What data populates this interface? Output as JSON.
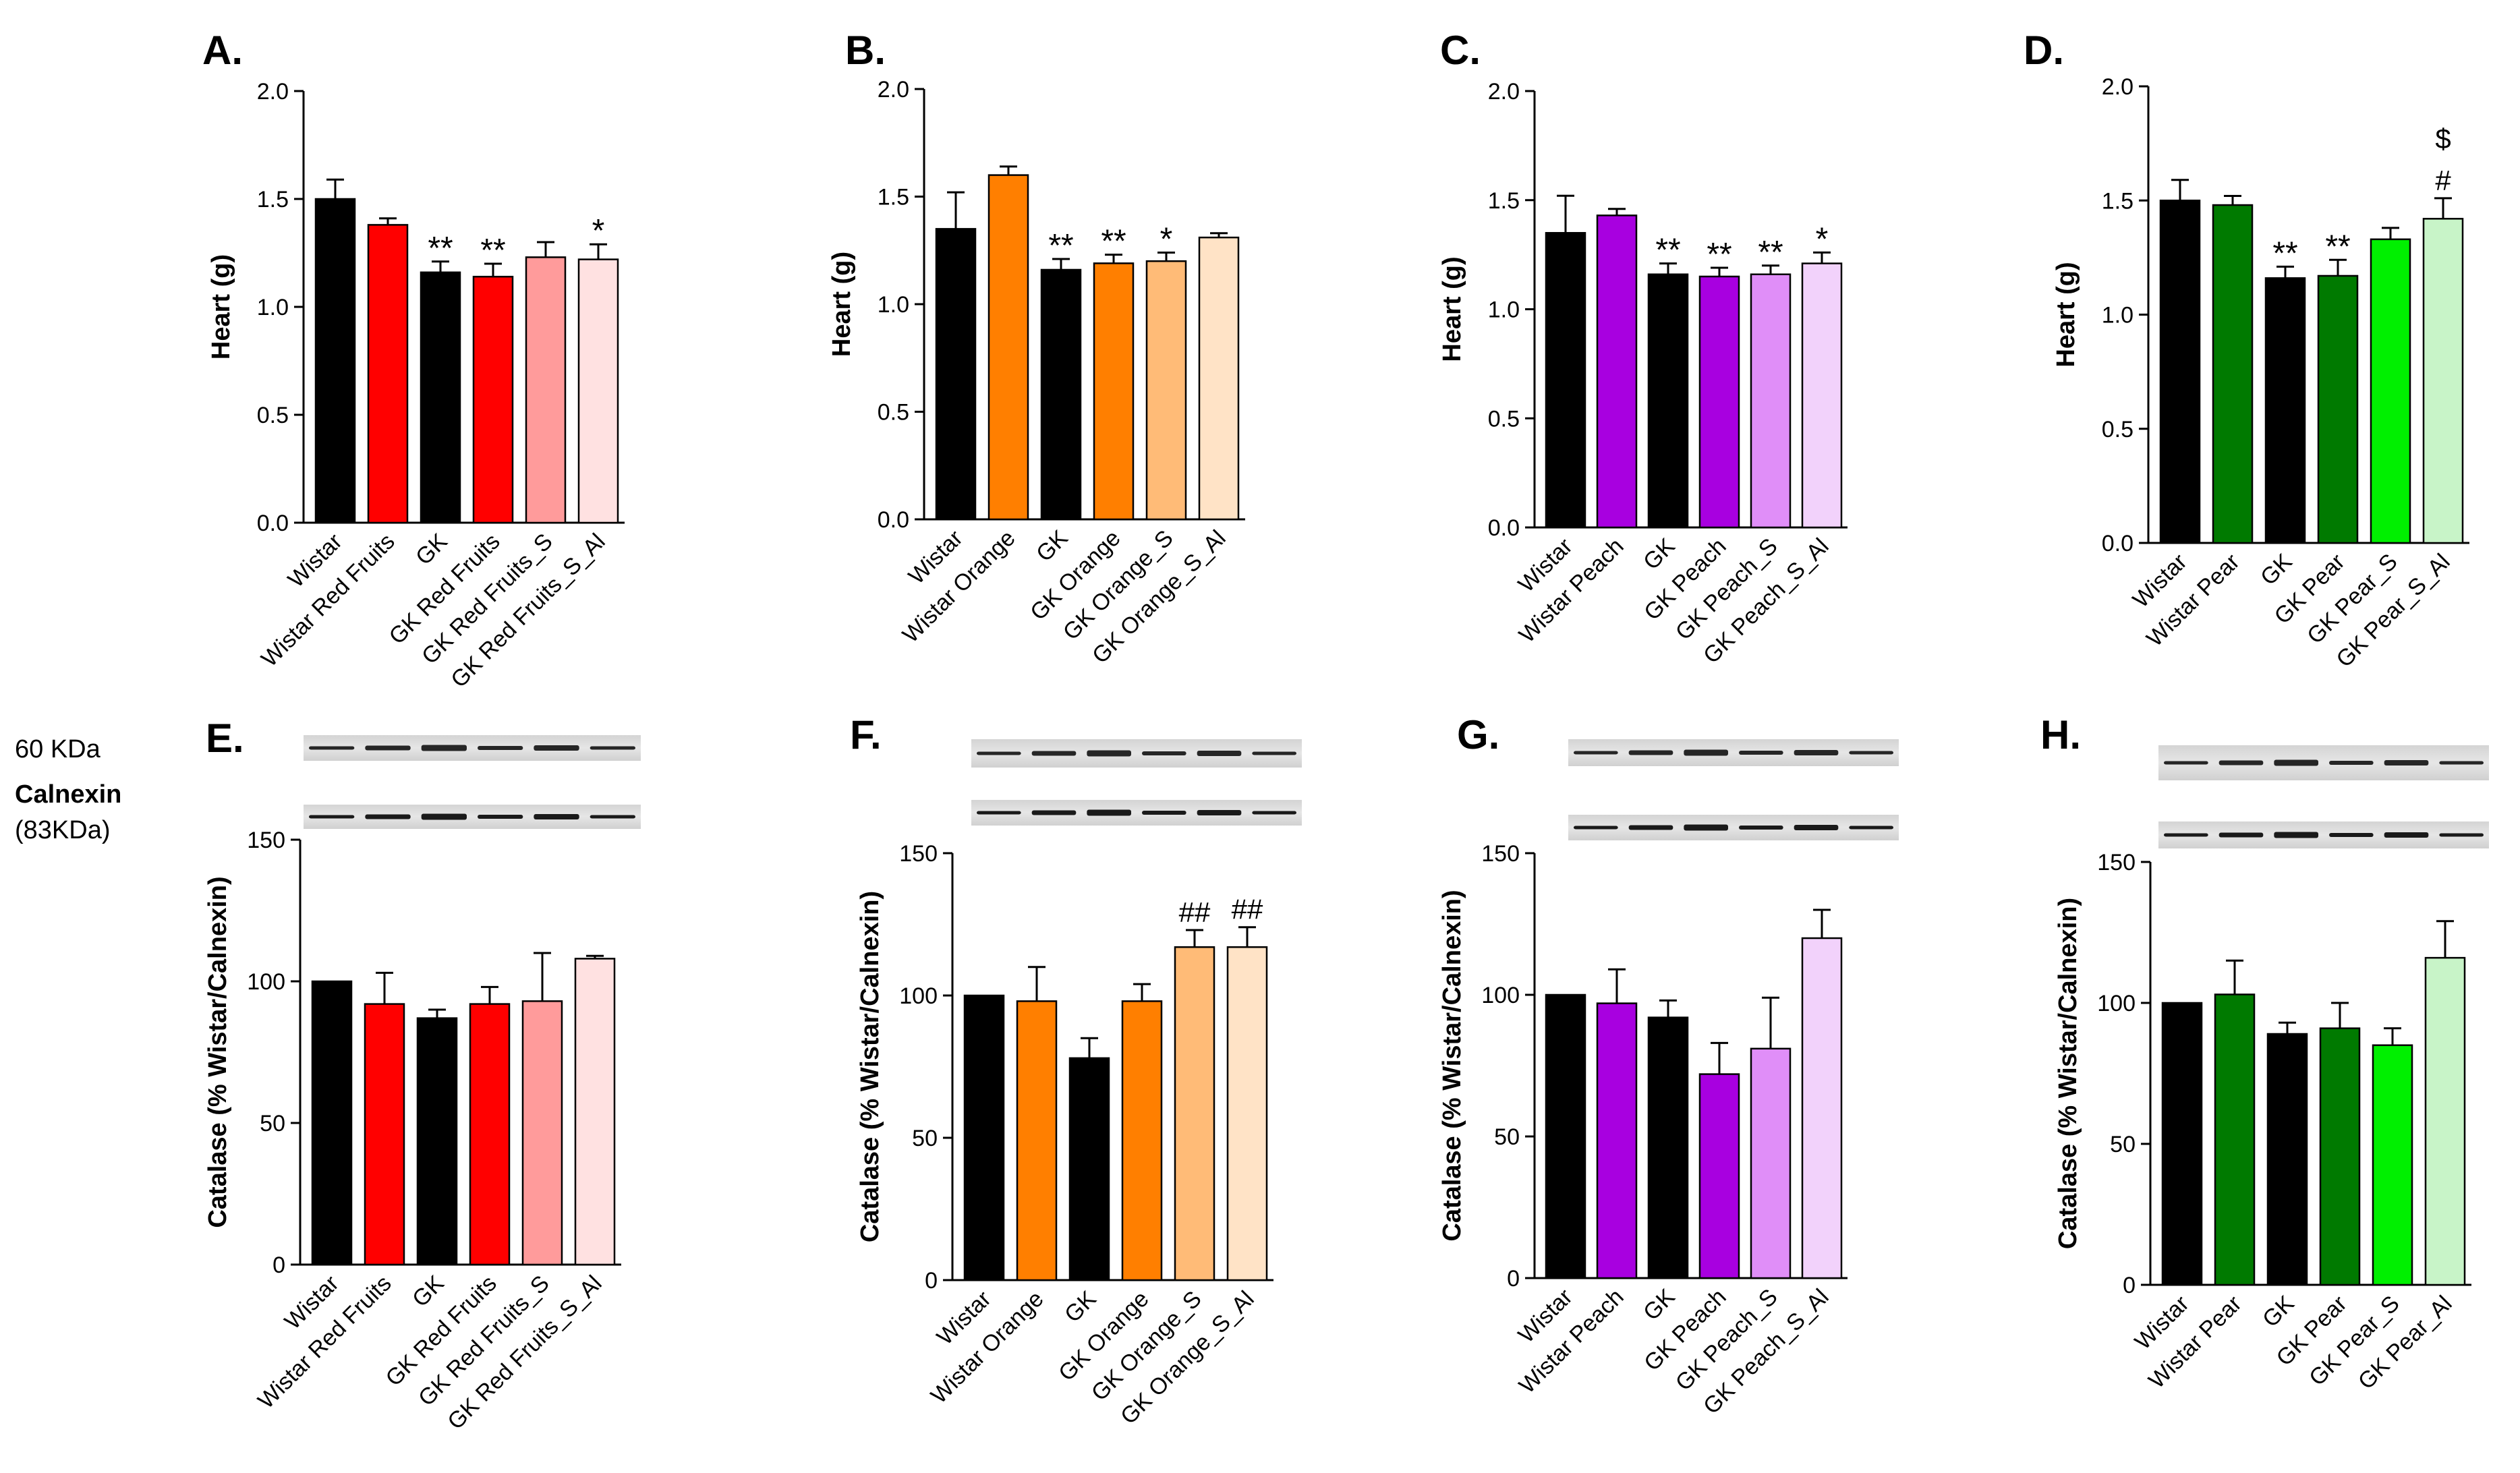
{
  "blot_labels": {
    "marker": "60 KDa",
    "loading": "Calnexin",
    "loading_size": "(83KDa)"
  },
  "colors": {
    "black": "#000000",
    "red": [
      "#ff0000",
      "#ff9b9b",
      "#ffe1e1"
    ],
    "orange": [
      "#ff7f00",
      "#ffbb77",
      "#ffe3c6"
    ],
    "purple": [
      "#a800e0",
      "#e08ef8",
      "#f2d2fb"
    ],
    "green": [
      "#007a00",
      "#00f000",
      "#c8f4c8"
    ]
  },
  "chart_data": [
    {
      "panel": "A.",
      "type": "bar",
      "ylabel": "Heart (g)",
      "ylim": [
        0,
        2.0
      ],
      "ticks": [
        "0.0",
        "0.5",
        "1.0",
        "1.5",
        "2.0"
      ],
      "categories": [
        "Wistar",
        "Wistar Red Fruits",
        "GK",
        "GK Red Fruits",
        "GK Red Fruits_S",
        "GK Red Fruits_S_Al"
      ],
      "values": [
        1.5,
        1.38,
        1.16,
        1.14,
        1.23,
        1.22
      ],
      "errors": [
        0.09,
        0.03,
        0.05,
        0.06,
        0.07,
        0.07
      ],
      "annotations": [
        "",
        "",
        "**",
        "**",
        "",
        "*"
      ],
      "annotations2": [
        "",
        "",
        "",
        "",
        "",
        ""
      ],
      "colors": [
        "#000000",
        "#ff0000",
        "#000000",
        "#ff0000",
        "#ff9b9b",
        "#ffe1e1"
      ]
    },
    {
      "panel": "B.",
      "type": "bar",
      "ylabel": "Heart (g)",
      "ylim": [
        0,
        2.0
      ],
      "ticks": [
        "0.0",
        "0.5",
        "1.0",
        "1.5",
        "2.0"
      ],
      "categories": [
        "Wistar",
        "Wistar Orange",
        "GK",
        "GK Orange",
        "GK Orange_S",
        "GK Orange_S_Al"
      ],
      "values": [
        1.35,
        1.6,
        1.16,
        1.19,
        1.2,
        1.31
      ],
      "errors": [
        0.17,
        0.04,
        0.05,
        0.04,
        0.04,
        0.02
      ],
      "annotations": [
        "",
        "",
        "**",
        "**",
        "*",
        ""
      ],
      "annotations2": [
        "",
        "",
        "",
        "",
        "",
        ""
      ],
      "colors": [
        "#000000",
        "#ff7f00",
        "#000000",
        "#ff7f00",
        "#ffbb77",
        "#ffe3c6"
      ]
    },
    {
      "panel": "C.",
      "type": "bar",
      "ylabel": "Heart (g)",
      "ylim": [
        0,
        2.0
      ],
      "ticks": [
        "0.0",
        "0.5",
        "1.0",
        "1.5",
        "2.0"
      ],
      "categories": [
        "Wistar",
        "Wistar Peach",
        "GK",
        "GK Peach",
        "GK Peach_S",
        "GK Peach_S_Al"
      ],
      "values": [
        1.35,
        1.43,
        1.16,
        1.15,
        1.16,
        1.21
      ],
      "errors": [
        0.17,
        0.03,
        0.05,
        0.04,
        0.04,
        0.05
      ],
      "annotations": [
        "",
        "",
        "**",
        "**",
        "**",
        "*"
      ],
      "annotations2": [
        "",
        "",
        "",
        "",
        "",
        ""
      ],
      "colors": [
        "#000000",
        "#a800e0",
        "#000000",
        "#a800e0",
        "#e08ef8",
        "#f2d2fb"
      ]
    },
    {
      "panel": "D.",
      "type": "bar",
      "ylabel": "Heart (g)",
      "ylim": [
        0,
        2.0
      ],
      "ticks": [
        "0.0",
        "0.5",
        "1.0",
        "1.5",
        "2.0"
      ],
      "categories": [
        "Wistar",
        "Wistar Pear",
        "GK",
        "GK Pear",
        "GK Pear_S",
        "GK Pear_S_Al"
      ],
      "values": [
        1.5,
        1.48,
        1.16,
        1.17,
        1.33,
        1.42
      ],
      "errors": [
        0.09,
        0.04,
        0.05,
        0.07,
        0.05,
        0.09
      ],
      "annotations": [
        "",
        "",
        "**",
        "**",
        "",
        "#"
      ],
      "annotations2": [
        "",
        "",
        "",
        "",
        "",
        "$"
      ],
      "colors": [
        "#000000",
        "#007a00",
        "#000000",
        "#007a00",
        "#00f000",
        "#c8f4c8"
      ]
    },
    {
      "panel": "E.",
      "type": "bar",
      "ylabel": "Catalase (% Wistar/Calnexin)",
      "ylim": [
        0,
        150
      ],
      "ticks": [
        "0",
        "50",
        "100",
        "150"
      ],
      "categories": [
        "Wistar",
        "Wistar Red Fruits",
        "GK",
        "GK Red Fruits",
        "GK Red Fruits_S",
        "GK Red Fruits_S_Al"
      ],
      "values": [
        100,
        92,
        87,
        92,
        93,
        108
      ],
      "errors": [
        0,
        11,
        3,
        6,
        17,
        1
      ],
      "annotations": [
        "",
        "",
        "",
        "",
        "",
        ""
      ],
      "annotations2": [
        "",
        "",
        "",
        "",
        "",
        ""
      ],
      "colors": [
        "#000000",
        "#ff0000",
        "#000000",
        "#ff0000",
        "#ff9b9b",
        "#ffe1e1"
      ]
    },
    {
      "panel": "F.",
      "type": "bar",
      "ylabel": "Catalase (% Wistar/Calnexin)",
      "ylim": [
        0,
        150
      ],
      "ticks": [
        "0",
        "50",
        "100",
        "150"
      ],
      "categories": [
        "Wistar",
        "Wistar Orange",
        "GK",
        "GK Orange",
        "GK Orange_S",
        "GK Orange_S_Al"
      ],
      "values": [
        100,
        98,
        78,
        98,
        117,
        117
      ],
      "errors": [
        0,
        12,
        7,
        6,
        6,
        7
      ],
      "annotations": [
        "",
        "",
        "",
        "",
        "##",
        "##"
      ],
      "annotations2": [
        "",
        "",
        "",
        "",
        "",
        ""
      ],
      "colors": [
        "#000000",
        "#ff7f00",
        "#000000",
        "#ff7f00",
        "#ffbb77",
        "#ffe3c6"
      ]
    },
    {
      "panel": "G.",
      "type": "bar",
      "ylabel": "Catalase (% Wistar/Calnexin)",
      "ylim": [
        0,
        150
      ],
      "ticks": [
        "0",
        "50",
        "100",
        "150"
      ],
      "categories": [
        "Wistar",
        "Wistar Peach",
        "GK",
        "GK Peach",
        "GK Peach_S",
        "GK Peach_S_Al"
      ],
      "values": [
        100,
        97,
        92,
        72,
        81,
        120
      ],
      "errors": [
        0,
        12,
        6,
        11,
        18,
        10
      ],
      "annotations": [
        "",
        "",
        "",
        "",
        "",
        ""
      ],
      "annotations2": [
        "",
        "",
        "",
        "",
        "",
        ""
      ],
      "colors": [
        "#000000",
        "#a800e0",
        "#000000",
        "#a800e0",
        "#e08ef8",
        "#f2d2fb"
      ]
    },
    {
      "panel": "H.",
      "type": "bar",
      "ylabel": "Catalase (% Wistar/Calnexin)",
      "ylim": [
        0,
        150
      ],
      "ticks": [
        "0",
        "50",
        "100",
        "150"
      ],
      "categories": [
        "Wistar",
        "Wistar Pear",
        "GK",
        "GK Pear",
        "GK Pear_S",
        "GK Pear_Al"
      ],
      "values": [
        100,
        103,
        89,
        91,
        85,
        116
      ],
      "errors": [
        0,
        12,
        4,
        9,
        6,
        13
      ],
      "annotations": [
        "",
        "",
        "",
        "",
        "",
        ""
      ],
      "annotations2": [
        "",
        "",
        "",
        "",
        "",
        ""
      ],
      "colors": [
        "#000000",
        "#007a00",
        "#000000",
        "#007a00",
        "#00f000",
        "#c8f4c8"
      ]
    }
  ]
}
